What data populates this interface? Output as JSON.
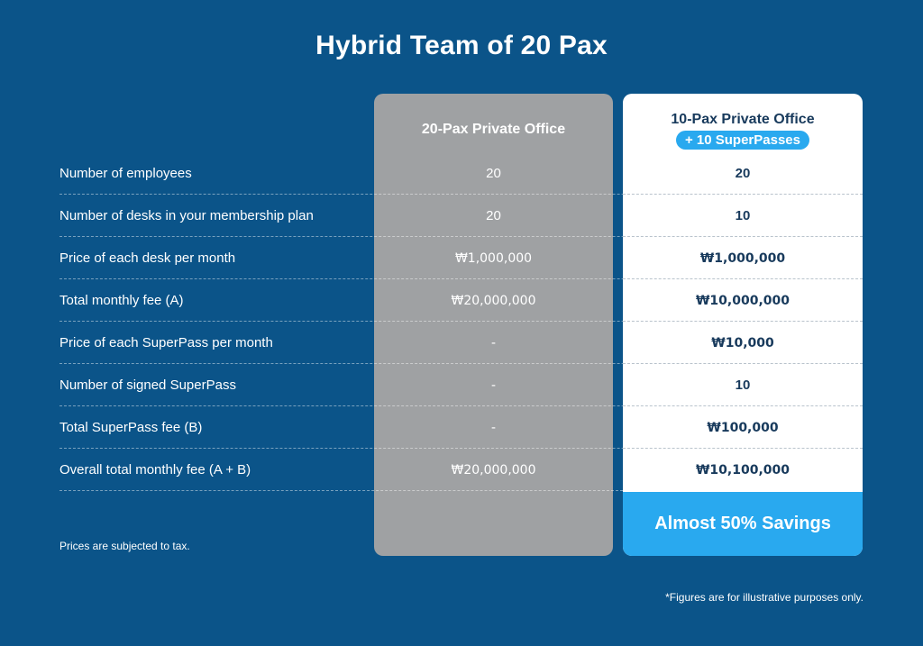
{
  "title": "Hybrid Team of 20 Pax",
  "colors": {
    "background": "#0b5489",
    "gray_column": "#9fa1a3",
    "white_column": "#ffffff",
    "accent": "#29a9ef",
    "dark_text": "#183a5c"
  },
  "columns": {
    "option_a": {
      "title": "20-Pax Private Office"
    },
    "option_b": {
      "title": "10-Pax Private Office",
      "badge": "+ 10 SuperPasses"
    }
  },
  "rows": [
    {
      "label": "Number of employees",
      "a": "20",
      "b": "20"
    },
    {
      "label": "Number of desks in your membership plan",
      "a": "20",
      "b": "10"
    },
    {
      "label": "Price of each desk per month",
      "a": "₩1,000,000",
      "b": "₩1,000,000"
    },
    {
      "label": "Total monthly fee (A)",
      "a": "₩20,000,000",
      "b": "₩10,000,000"
    },
    {
      "label": "Price of each SuperPass per month",
      "a": "-",
      "b": "₩10,000"
    },
    {
      "label": "Number of signed SuperPass",
      "a": "-",
      "b": "10"
    },
    {
      "label": "Total SuperPass fee (B)",
      "a": "-",
      "b": "₩100,000"
    },
    {
      "label": "Overall total monthly fee (A + B)",
      "a": "₩20,000,000",
      "b": "₩10,100,000"
    }
  ],
  "savings": "Almost 50% Savings",
  "notes": {
    "tax": "Prices are subjected to tax.",
    "disclaimer": "*Figures are for illustrative purposes only."
  }
}
